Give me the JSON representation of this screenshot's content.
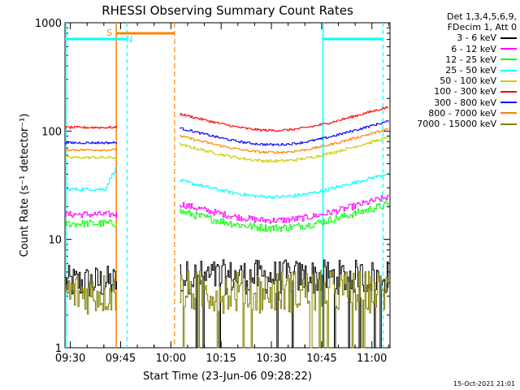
{
  "chart_data": {
    "type": "line",
    "title": "RHESSI Observing Summary Count Rates",
    "xlabel": "Start Time (23-Jun-06 09:28:22)",
    "ylabel": "Count Rate (s⁻¹ detector⁻¹)",
    "yscale": "log",
    "ylim": [
      1,
      1000
    ],
    "xlim_minutes": [
      0,
      97
    ],
    "y_ticks": [
      "1",
      "10",
      "100",
      "1000"
    ],
    "x_ticks": [
      {
        "label": "09:30",
        "minute": 1.6
      },
      {
        "label": "09:45",
        "minute": 16.6
      },
      {
        "label": "10:00",
        "minute": 31.6
      },
      {
        "label": "10:15",
        "minute": 46.6
      },
      {
        "label": "10:30",
        "minute": 61.6
      },
      {
        "label": "10:45",
        "minute": 76.6
      },
      {
        "label": "11:00",
        "minute": 91.6
      }
    ],
    "data_gap_minutes": [
      15.6,
      34.2
    ],
    "series": [
      {
        "name": "3 - 6 keV",
        "color": "#000000",
        "level_a": 4.0,
        "level_b": 4.5,
        "noise": 0.32
      },
      {
        "name": "6 - 12 keV",
        "color": "#ff00ff",
        "level_a": 17,
        "level_b": 17,
        "noise": 0.06
      },
      {
        "name": "12 - 25 keV",
        "color": "#00ff00",
        "level_a": 14,
        "level_b": 14.5,
        "noise": 0.07
      },
      {
        "name": "25 - 50 keV",
        "color": "#00ffff",
        "level_a": 29,
        "level_b": 28,
        "noise": 0.03
      },
      {
        "name": "50 - 100 keV",
        "color": "#cccc00",
        "level_a": 57,
        "level_b": 60,
        "noise": 0.025
      },
      {
        "name": "100 - 300 keV",
        "color": "#ff0000",
        "level_a": 108,
        "level_b": 115,
        "noise": 0.02
      },
      {
        "name": "300 - 800 keV",
        "color": "#0000ff",
        "level_a": 78,
        "level_b": 85,
        "noise": 0.02
      },
      {
        "name": "800 - 7000 keV",
        "color": "#ff8000",
        "level_a": 67,
        "level_b": 72,
        "noise": 0.02
      },
      {
        "name": "7000 - 15000 keV",
        "color": "#808000",
        "level_a": 3.2,
        "level_b": 3.3,
        "noise": 0.4
      }
    ],
    "markers": {
      "saa_label": "S",
      "night_label": "N",
      "cyan_color": "#00ffff",
      "orange_color": "#ff8000",
      "cyan_solid_minutes": [
        0,
        77.0
      ],
      "cyan_dashed_minutes": [
        18.5,
        94.9
      ],
      "orange_solid_minutes": [
        15.3
      ],
      "orange_dashed_minutes": [
        32.7
      ],
      "cyan_bars": [
        [
          0,
          18.5
        ],
        [
          77.0,
          94.9
        ]
      ],
      "orange_bar": [
        15.3,
        32.7
      ]
    }
  },
  "legend": {
    "header_line1": "Det 1,3,4,5,6,9,",
    "header_line2": "FDecim 1, Att 0"
  },
  "footer": {
    "timestamp": "15-Oct-2021 21:01"
  }
}
